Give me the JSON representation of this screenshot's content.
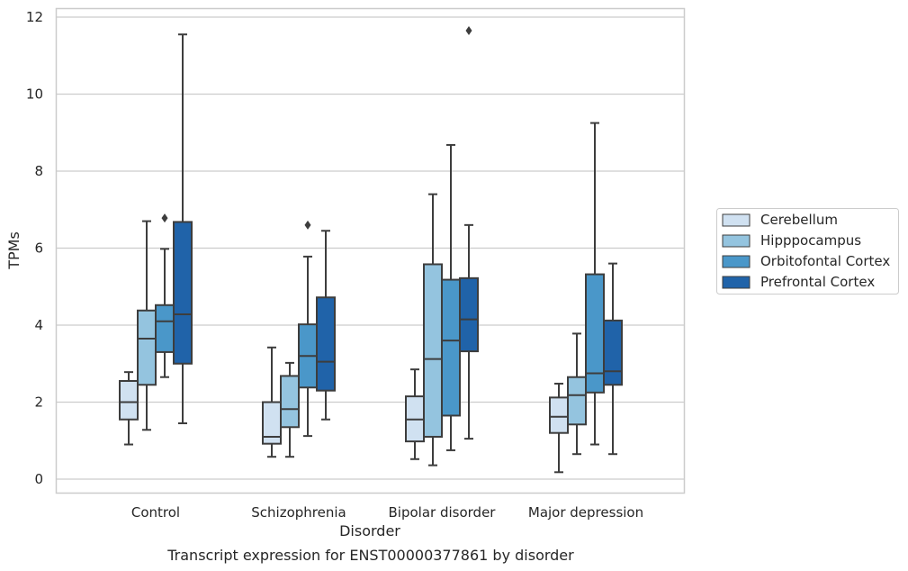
{
  "caption": "Transcript expression for ENST00000377861 by disorder",
  "colors": {
    "Cerebellum": "#d0e1f1",
    "Hipppocampus": "#94c4df",
    "Orbitofontal Cortex": "#4a97c9",
    "Prefrontal Cortex": "#2063a9",
    "box_edge": "#3d3d3d",
    "grid": "#cccccc",
    "frame": "#cccccc"
  },
  "chart_data": {
    "type": "boxplot",
    "xlabel": "Disorder",
    "ylabel": "TPMs",
    "ylim": [
      -0.35,
      12.2
    ],
    "yticks": [
      0,
      2,
      4,
      6,
      8,
      10,
      12
    ],
    "grid": true,
    "legend_position": "right",
    "categories": [
      "Control",
      "Schizophrenia",
      "Bipolar disorder",
      "Major depression"
    ],
    "series": [
      {
        "name": "Cerebellum",
        "boxes": [
          {
            "whislo": 0.9,
            "q1": 1.55,
            "med": 2.0,
            "q3": 2.55,
            "whishi": 2.78,
            "fliers": []
          },
          {
            "whislo": 0.58,
            "q1": 0.92,
            "med": 1.1,
            "q3": 2.0,
            "whishi": 3.42,
            "fliers": []
          },
          {
            "whislo": 0.52,
            "q1": 0.98,
            "med": 1.55,
            "q3": 2.15,
            "whishi": 2.85,
            "fliers": []
          },
          {
            "whislo": 0.18,
            "q1": 1.2,
            "med": 1.62,
            "q3": 2.12,
            "whishi": 2.48,
            "fliers": []
          }
        ]
      },
      {
        "name": "Hipppocampus",
        "boxes": [
          {
            "whislo": 1.28,
            "q1": 2.45,
            "med": 3.65,
            "q3": 4.38,
            "whishi": 6.7,
            "fliers": []
          },
          {
            "whislo": 0.58,
            "q1": 1.35,
            "med": 1.82,
            "q3": 2.68,
            "whishi": 3.02,
            "fliers": []
          },
          {
            "whislo": 0.36,
            "q1": 1.1,
            "med": 3.12,
            "q3": 5.58,
            "whishi": 7.4,
            "fliers": []
          },
          {
            "whislo": 0.65,
            "q1": 1.42,
            "med": 2.18,
            "q3": 2.65,
            "whishi": 3.78,
            "fliers": []
          }
        ]
      },
      {
        "name": "Orbitofontal Cortex",
        "boxes": [
          {
            "whislo": 2.65,
            "q1": 3.3,
            "med": 4.1,
            "q3": 4.52,
            "whishi": 5.98,
            "fliers": [
              6.78
            ]
          },
          {
            "whislo": 1.12,
            "q1": 2.38,
            "med": 3.2,
            "q3": 4.02,
            "whishi": 5.78,
            "fliers": [
              6.6
            ]
          },
          {
            "whislo": 0.75,
            "q1": 1.65,
            "med": 3.6,
            "q3": 5.18,
            "whishi": 8.68,
            "fliers": []
          },
          {
            "whislo": 0.9,
            "q1": 2.25,
            "med": 2.75,
            "q3": 5.32,
            "whishi": 9.25,
            "fliers": []
          }
        ]
      },
      {
        "name": "Prefrontal Cortex",
        "boxes": [
          {
            "whislo": 1.45,
            "q1": 3.0,
            "med": 4.28,
            "q3": 6.68,
            "whishi": 11.55,
            "fliers": []
          },
          {
            "whislo": 1.55,
            "q1": 2.3,
            "med": 3.05,
            "q3": 4.72,
            "whishi": 6.45,
            "fliers": []
          },
          {
            "whislo": 1.05,
            "q1": 3.32,
            "med": 4.15,
            "q3": 5.22,
            "whishi": 6.6,
            "fliers": [
              11.65
            ]
          },
          {
            "whislo": 0.65,
            "q1": 2.45,
            "med": 2.8,
            "q3": 4.12,
            "whishi": 5.6,
            "fliers": []
          }
        ]
      }
    ]
  }
}
